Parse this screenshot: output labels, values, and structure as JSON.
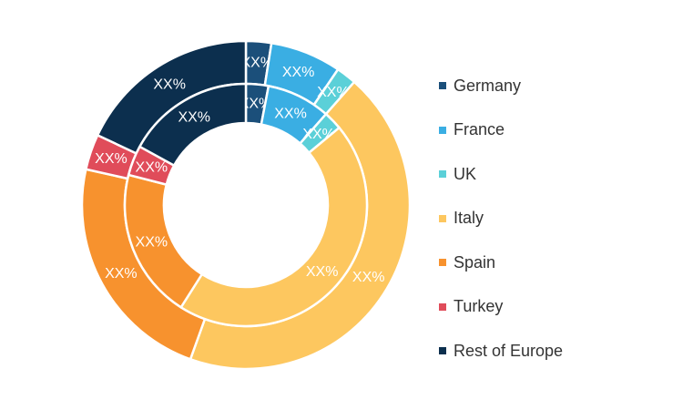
{
  "chart_data": {
    "type": "pie",
    "subtype": "double-donut",
    "title": "",
    "categories": [
      "Germany",
      "France",
      "UK",
      "Italy",
      "Spain",
      "Turkey",
      "Rest of Europe"
    ],
    "colors": [
      "#1b4f7a",
      "#3aaee3",
      "#5bd0d8",
      "#fdc75f",
      "#f7922e",
      "#e04c5a",
      "#0c2f4e"
    ],
    "series": [
      {
        "ring": "outer",
        "values": [
          2.5,
          7.0,
          2.0,
          44.0,
          23.0,
          3.5,
          18.0
        ],
        "data_labels": [
          "XX%",
          "XX%",
          "XX%",
          "XX%",
          "XX%",
          "XX%",
          "XX%"
        ]
      },
      {
        "ring": "inner",
        "values": [
          3.0,
          8.5,
          2.5,
          45.0,
          20.0,
          4.0,
          17.0
        ],
        "data_labels": [
          "XX%",
          "XX%",
          "XX%",
          "XX%",
          "XX%",
          "XX%",
          "XX%"
        ]
      }
    ],
    "legend_position": "right"
  },
  "legend": {
    "items": [
      {
        "label": "Germany",
        "color": "#1b4f7a"
      },
      {
        "label": "France",
        "color": "#3aaee3"
      },
      {
        "label": "UK",
        "color": "#5bd0d8"
      },
      {
        "label": "Italy",
        "color": "#fdc75f"
      },
      {
        "label": "Spain",
        "color": "#f7922e"
      },
      {
        "label": "Turkey",
        "color": "#e04c5a"
      },
      {
        "label": "Rest of Europe",
        "color": "#0c2f4e"
      }
    ]
  }
}
